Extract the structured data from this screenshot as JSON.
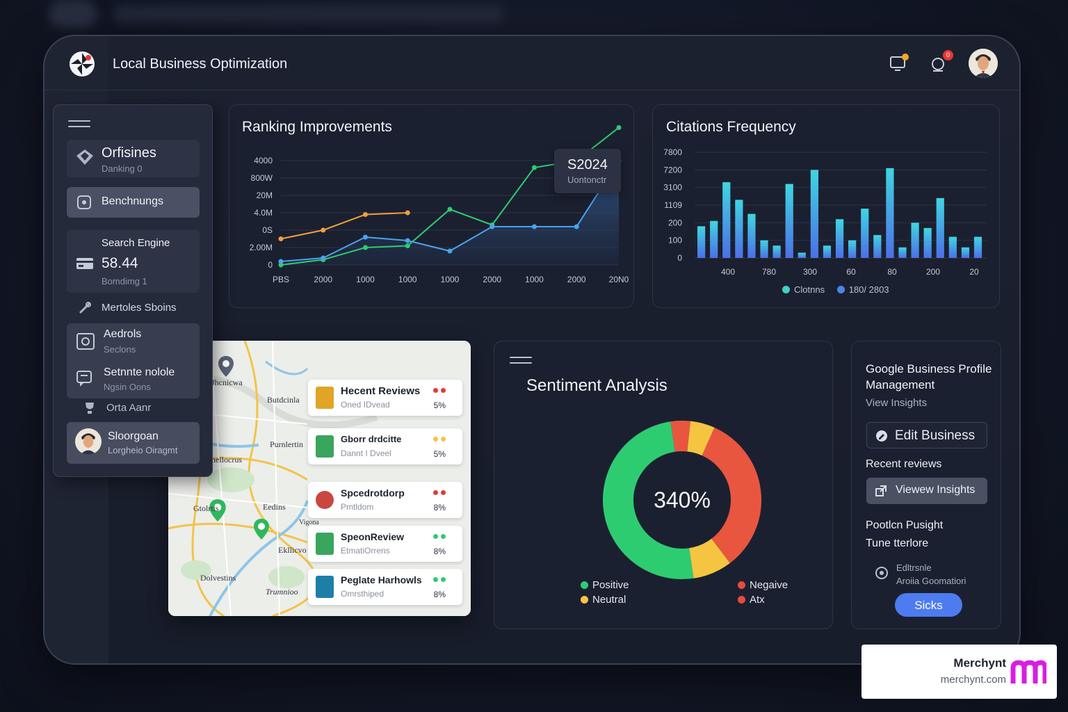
{
  "header": {
    "app_title": "Local Business Optimization",
    "icons": [
      "monitor-icon",
      "bell-icon",
      "user-avatar"
    ],
    "notification_badge": "0",
    "accent_dot_color": "#f5a623",
    "badge_color": "#e53935"
  },
  "sidebar": {
    "items": [
      {
        "label": "Orfisines",
        "sub": "Danking 0",
        "icon": "diamond-icon"
      },
      {
        "label": "Benchnungs",
        "icon": "camera-icon"
      },
      {
        "label": "Search Engine",
        "value": "58.44",
        "sub": "Bomdimg 1",
        "icon": "card-icon"
      },
      {
        "label": "Mertoles Sboins",
        "icon": "link-icon"
      },
      {
        "label": "Aedrols",
        "sub": "Seclons",
        "icon": "image-icon"
      },
      {
        "label": "Setnnte nolole",
        "sub": "Ngsin Oons",
        "icon": "chat-icon"
      },
      {
        "label": "Orta Aanr",
        "icon": "trophy-icon"
      },
      {
        "label": "Sloorgoan",
        "sub": "Lorgheio Oiragmt",
        "icon": "user-avatar"
      }
    ]
  },
  "ranking": {
    "title": "Ranking Improvements",
    "tooltip_value": "S2024",
    "tooltip_label": "Uontonctr"
  },
  "citations": {
    "title": "Citations Frequency",
    "legend": [
      "Clotnns",
      "180/ 2803"
    ]
  },
  "sentiment": {
    "title": "Sentiment Analysis",
    "center_value": "340%",
    "legend": [
      {
        "label": "Positive",
        "color": "#2ecc71"
      },
      {
        "label": "Neutral",
        "color": "#f5c542"
      },
      {
        "label": "Negaive",
        "color": "#e74c3c"
      },
      {
        "label": "Atx",
        "color": "#e74c3c"
      }
    ]
  },
  "gbp": {
    "title_line1": "Google Business Profile",
    "title_line2": "Management",
    "view_insights": "View Insights",
    "edit_business": "Edit Business",
    "recent_reviews": "Recent reviews",
    "view_insights_btn": "Viewew Insights",
    "line_a": "Pootlcn Pusight",
    "line_b": "Tune tterlore",
    "info_title": "Edltrsnle",
    "info_sub": "Aroiia Goomatiori",
    "sicks_btn": "Sicks"
  },
  "map": {
    "labels": [
      "Jhcnicwa",
      "Butdcinla",
      "Purnlertin",
      "hellocrus",
      "Gtolrtis",
      "Eedins",
      "Vigona",
      "Ekllicvo",
      "Dolvestins",
      "Trumnioo"
    ],
    "reviews": [
      {
        "title": "Hecent Reviews",
        "sub": "Oned IDvead",
        "pct": "5%",
        "dots": [
          "#e53935",
          "#e53935"
        ],
        "thumb": "#e0a526"
      },
      {
        "title": "Gborr drdcitte",
        "sub": "Dannt I Dveel",
        "pct": "5%",
        "dots": [
          "#f5c542",
          "#f5c542"
        ],
        "thumb": "#3aa55c"
      },
      {
        "title": "Spcedrotdorp",
        "sub": "Pmtldom",
        "pct": "8%",
        "dots": [
          "#e53935",
          "#e53935"
        ],
        "thumb": "#c9473f"
      },
      {
        "title": "SpeonReview",
        "sub": "EtmatiOrrens",
        "pct": "8%",
        "dots": [
          "#2ecc71",
          "#2ecc71"
        ],
        "thumb": "#3aa55c"
      },
      {
        "title": "Peglate Harhowls",
        "sub": "Omrsthiped",
        "pct": "8%",
        "dots": [
          "#2ecc71",
          "#2ecc71"
        ],
        "thumb": "#1d7fa8"
      }
    ]
  },
  "branding": {
    "name": "Merchynt",
    "url": "merchynt.com",
    "logo_color": "#d81ee0"
  },
  "chart_data": [
    {
      "type": "line",
      "title": "Ranking Improvements",
      "x": [
        "PBS",
        "2000",
        "1000",
        "1000",
        "1000",
        "2000",
        "1000",
        "2000",
        "20N0"
      ],
      "y_ticks": [
        "4000",
        "800W",
        "20M",
        "4.0M",
        "0S",
        "2.00M",
        "0"
      ],
      "ylim": [
        0,
        6
      ],
      "series": [
        {
          "color": "#f0a040",
          "values": [
            1.5,
            2.0,
            2.9,
            3.0,
            null,
            null,
            null,
            null,
            null
          ]
        },
        {
          "color": "#2ecc71",
          "values": [
            0,
            0.3,
            1.0,
            1.1,
            3.2,
            2.3,
            5.6,
            6.0,
            7.9
          ]
        },
        {
          "color": "#4aa3f0",
          "values": [
            0.2,
            0.4,
            1.6,
            1.4,
            0.8,
            2.2,
            2.2,
            2.2,
            6.0
          ]
        }
      ],
      "tooltip": {
        "value": "S2024",
        "label": "Uontonctr"
      }
    },
    {
      "type": "bar",
      "title": "Citations Frequency",
      "x_ticks": [
        "400",
        "780",
        "300",
        "60",
        "80",
        "200",
        "20"
      ],
      "y_ticks": [
        "7800",
        "7200",
        "3100",
        "1109",
        "200",
        "100",
        "0"
      ],
      "ylim": [
        0,
        6
      ],
      "values": [
        1.8,
        2.1,
        4.3,
        3.3,
        2.5,
        1.0,
        0.7,
        4.2,
        0.3,
        5.0,
        0.7,
        2.2,
        1.0,
        2.8,
        1.3,
        5.1,
        0.6,
        2.0,
        1.7,
        3.4,
        1.2,
        0.6,
        1.2
      ],
      "legend": [
        "Clotnns",
        "180/ 2803"
      ],
      "grid": true
    },
    {
      "type": "pie",
      "title": "Sentiment Analysis",
      "labels": [
        "Positive",
        "Negaive",
        "Neutral",
        "Atx"
      ],
      "values": [
        50,
        33,
        9,
        8
      ],
      "colors": [
        "#2ecc71",
        "#e8563f",
        "#f5c542",
        "#e8563f"
      ],
      "center": "340%"
    }
  ]
}
